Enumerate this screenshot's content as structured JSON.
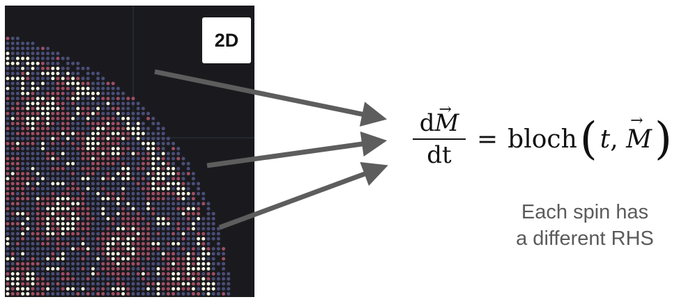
{
  "panel": {
    "badge_label": "2D",
    "colors": {
      "background": "#1a1a1e",
      "grid_line": "#2c3440",
      "tissue_blue": "#4a4e78",
      "tissue_red": "#a04e64",
      "tissue_white": "#f2f2e0",
      "arrow": "#5d5d5d"
    }
  },
  "equation": {
    "numerator_d": "d",
    "numerator_var": "M",
    "denominator": "dt",
    "equals": "=",
    "function_name": "bloch",
    "arg_t": "t",
    "arg_sep": ",",
    "arg_var": "M",
    "vector_arrow": "→"
  },
  "caption": {
    "line1": "Each spin has",
    "line2": "a different RHS"
  }
}
